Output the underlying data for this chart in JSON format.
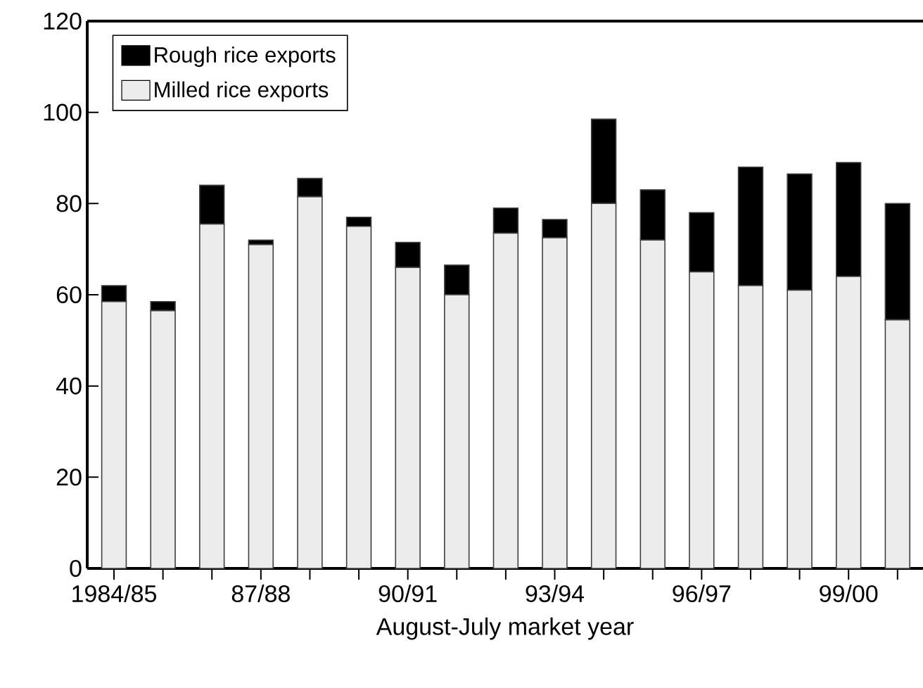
{
  "chart_data": {
    "type": "bar",
    "stacked": true,
    "xlabel": "August-July market year",
    "categories": [
      "1984/85",
      null,
      null,
      "87/88",
      null,
      null,
      "90/91",
      null,
      null,
      "93/94",
      null,
      null,
      "96/97",
      null,
      null,
      "99/00",
      null
    ],
    "series": [
      {
        "name": "Milled rice exports",
        "color": "#ececec",
        "values": [
          58.5,
          56.5,
          75.5,
          71,
          81.5,
          75,
          66,
          60,
          73.5,
          72.5,
          80,
          72,
          65,
          62,
          61,
          64,
          54.5
        ]
      },
      {
        "name": "Rough rice exports",
        "color": "#000000",
        "values": [
          3.5,
          2,
          8.5,
          1,
          4,
          2,
          5.5,
          6.5,
          5.5,
          4,
          18.5,
          11,
          13,
          26,
          25.5,
          25,
          25.5
        ]
      }
    ],
    "ylim": [
      0,
      120
    ],
    "yticks": [
      0,
      20,
      40,
      60,
      80,
      100,
      120
    ],
    "legend": "top left",
    "grid": false
  }
}
